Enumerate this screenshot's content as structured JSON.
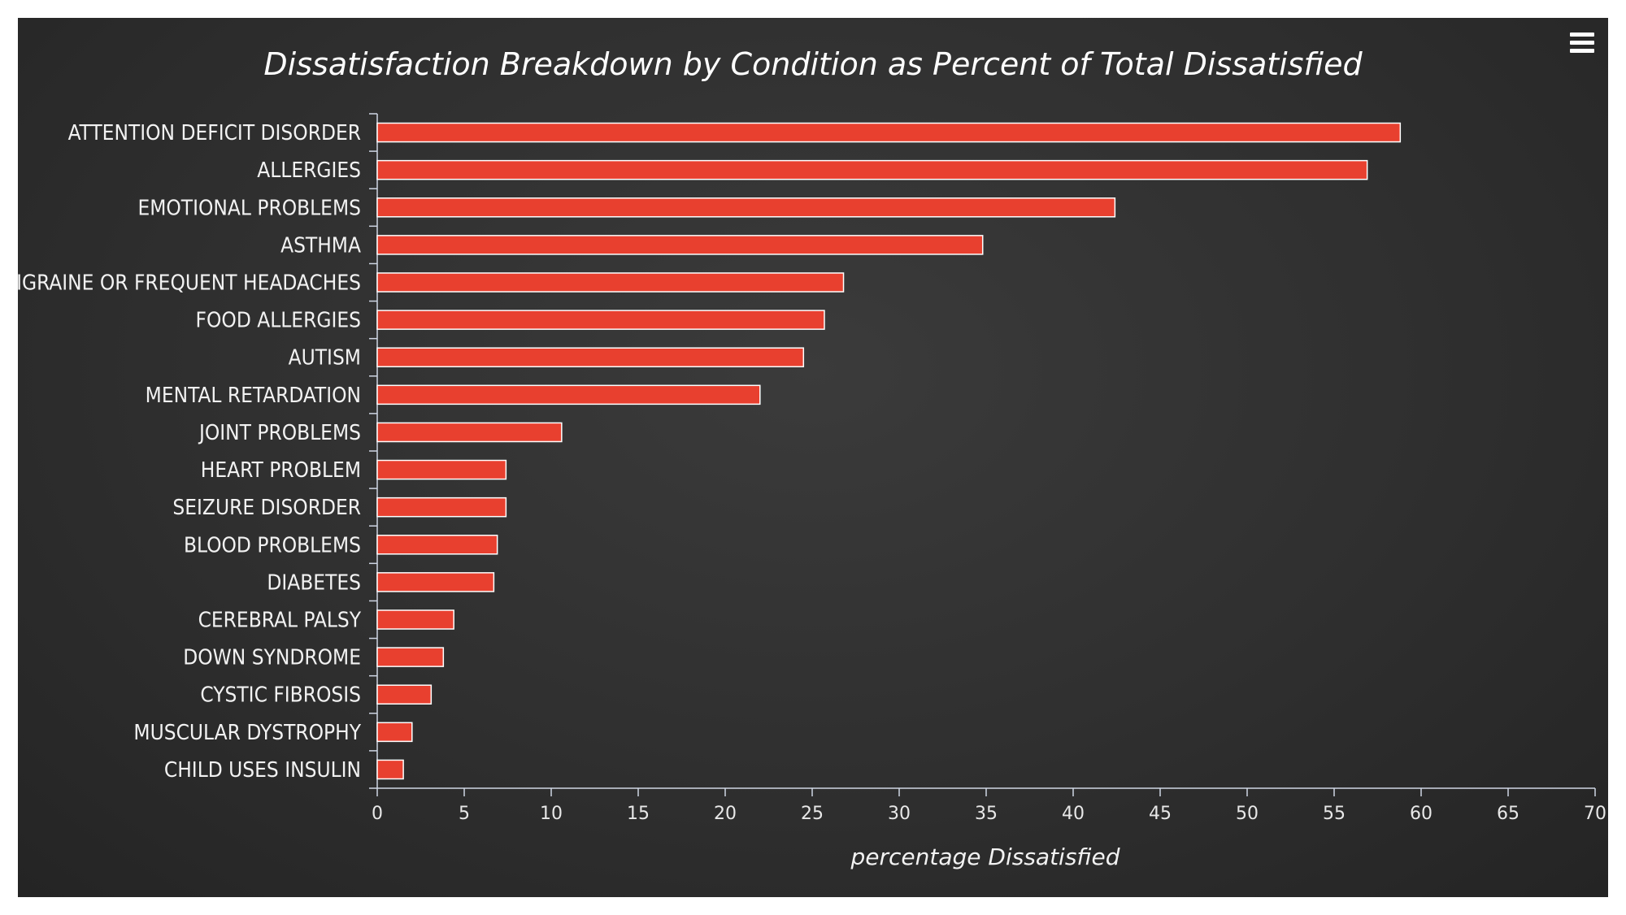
{
  "menu": {
    "icon": "hamburger-menu-icon"
  },
  "colors": {
    "background": "#2f2f2f",
    "bar": "#e8402f",
    "text": "#ffffff"
  },
  "chart_data": {
    "type": "bar",
    "orientation": "horizontal",
    "title": "Dissatisfaction Breakdown by Condition as Percent of Total Dissatisfied",
    "xlabel": "percentage Dissatisfied",
    "ylabel": "",
    "xlim": [
      0,
      70
    ],
    "xticks": [
      0,
      5,
      10,
      15,
      20,
      25,
      30,
      35,
      40,
      45,
      50,
      55,
      60,
      65,
      70
    ],
    "grid": false,
    "categories": [
      "ATTENTION DEFICIT DISORDER",
      "ALLERGIES",
      "EMOTIONAL PROBLEMS",
      "ASTHMA",
      "MIGRAINE OR FREQUENT HEADACHES",
      "FOOD ALLERGIES",
      "AUTISM",
      "MENTAL RETARDATION",
      "JOINT PROBLEMS",
      "HEART PROBLEM",
      "SEIZURE DISORDER",
      "BLOOD PROBLEMS",
      "DIABETES",
      "CEREBRAL PALSY",
      "DOWN SYNDROME",
      "CYSTIC FIBROSIS",
      "MUSCULAR DYSTROPHY",
      "CHILD USES INSULIN"
    ],
    "values": [
      58.8,
      56.9,
      42.4,
      34.8,
      26.8,
      25.7,
      24.5,
      22.0,
      10.6,
      7.4,
      7.4,
      6.9,
      6.7,
      4.4,
      3.8,
      3.1,
      2.0,
      1.5
    ]
  }
}
